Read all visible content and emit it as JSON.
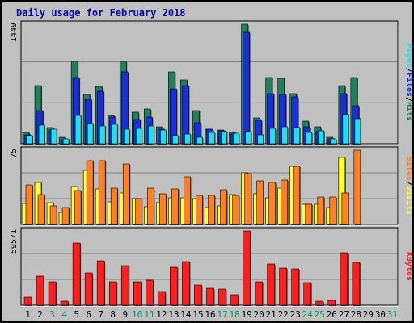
{
  "title": "Daily usage for February 2018",
  "colors": {
    "pages": "#1a2fd8",
    "files": "#1fe0f0",
    "hits": "#1f8060",
    "visits": "#ffff30",
    "sites": "#ff8020",
    "kbytes": "#ff1e1e",
    "weekend": "#00a060",
    "weekday": "#000000"
  },
  "chart_data": [
    {
      "type": "bar",
      "panel": "hits-files-pages",
      "max_label": "1449",
      "ylim": [
        0,
        1449
      ],
      "categories": [
        "1",
        "2",
        "3",
        "4",
        "5",
        "6",
        "7",
        "8",
        "9",
        "10",
        "11",
        "12",
        "13",
        "14",
        "15",
        "16",
        "17",
        "18",
        "19",
        "20",
        "21",
        "22",
        "23",
        "24",
        "25",
        "26",
        "27",
        "28",
        "29",
        "30",
        "31"
      ],
      "weekend_days": [
        "3",
        "4",
        "10",
        "11",
        "17",
        "18",
        "24",
        "25",
        "31"
      ],
      "legend": {
        "hits": "Hits",
        "files": "Files",
        "pages": "Pages",
        "separator": "/"
      },
      "series": [
        {
          "name": "Hits",
          "color": "#1f8060",
          "values": [
            141,
            701,
            198,
            74,
            1002,
            602,
            698,
            345,
            1002,
            381,
            421,
            204,
            873,
            770,
            397,
            180,
            166,
            135,
            1449,
            314,
            798,
            797,
            607,
            270,
            203,
            75,
            706,
            799,
            0,
            0,
            0
          ]
        },
        {
          "name": "Files",
          "color": "#1fe0f0",
          "values": [
            96,
            224,
            177,
            55,
            340,
            246,
            218,
            235,
            176,
            183,
            211,
            162,
            101,
            122,
            79,
            141,
            145,
            128,
            148,
            112,
            185,
            207,
            200,
            140,
            155,
            57,
            348,
            303,
            0,
            0,
            0
          ]
        },
        {
          "name": "Pages",
          "color": "#1a2fd8",
          "values": [
            105,
            401,
            170,
            48,
            801,
            535,
            632,
            325,
            875,
            297,
            324,
            173,
            665,
            708,
            254,
            178,
            156,
            119,
            1353,
            287,
            606,
            595,
            566,
            201,
            142,
            56,
            609,
            462,
            0,
            0,
            0
          ]
        }
      ]
    },
    {
      "type": "bar",
      "panel": "visits-sites",
      "max_label": "75",
      "ylim": [
        0,
        75
      ],
      "categories": [
        "1",
        "2",
        "3",
        "4",
        "5",
        "6",
        "7",
        "8",
        "9",
        "10",
        "11",
        "12",
        "13",
        "14",
        "15",
        "16",
        "17",
        "18",
        "19",
        "20",
        "21",
        "22",
        "23",
        "24",
        "25",
        "26",
        "27",
        "28",
        "29",
        "30",
        "31"
      ],
      "legend": {
        "visits": "Visits",
        "sites": "Sites",
        "separator": "/"
      },
      "series": [
        {
          "name": "Visits",
          "color": "#ffff30",
          "values": [
            21,
            42,
            22,
            12,
            38,
            55,
            36,
            23,
            32,
            26,
            18,
            22,
            27,
            27,
            26,
            17,
            19,
            30,
            52,
            31,
            27,
            37,
            59,
            20,
            20,
            17,
            68,
            0,
            0,
            0,
            0
          ]
        },
        {
          "name": "Sites",
          "color": "#ff8020",
          "values": [
            40,
            30,
            19,
            17,
            34,
            64,
            64,
            37,
            61,
            26,
            37,
            31,
            36,
            48,
            29,
            29,
            35,
            29,
            51,
            44,
            42,
            45,
            59,
            20,
            28,
            28,
            32,
            75,
            0,
            0,
            0
          ]
        }
      ]
    },
    {
      "type": "bar",
      "panel": "kbytes",
      "max_label": "59571",
      "ylim": [
        0,
        59571
      ],
      "categories": [
        "1",
        "2",
        "3",
        "4",
        "5",
        "6",
        "7",
        "8",
        "9",
        "10",
        "11",
        "12",
        "13",
        "14",
        "15",
        "16",
        "17",
        "18",
        "19",
        "20",
        "21",
        "22",
        "23",
        "24",
        "25",
        "26",
        "27",
        "28",
        "29",
        "30",
        "31"
      ],
      "legend": {
        "kbytes": "KBytes"
      },
      "series": [
        {
          "name": "KBytes",
          "color": "#ff1e1e",
          "values": [
            6545,
            23562,
            18706,
            2992,
            49545,
            26178,
            35514,
            19069,
            31800,
            18706,
            19817,
            11032,
            30489,
            35140,
            15888,
            13832,
            13272,
            8600,
            59571,
            18706,
            32900,
            29900,
            29174,
            17949,
            3000,
            4112,
            42245,
            34391,
            0,
            0,
            0
          ]
        }
      ]
    }
  ]
}
